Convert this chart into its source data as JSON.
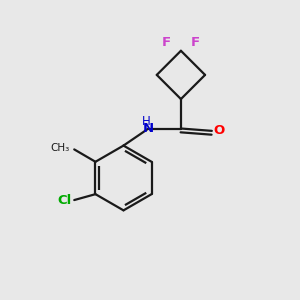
{
  "background_color": "#e8e8e8",
  "bond_color": "#1a1a1a",
  "F_color": "#cc44cc",
  "O_color": "#ff0000",
  "N_color": "#0000cc",
  "Cl_color": "#00aa00",
  "line_width": 1.6,
  "font_size": 9.5,
  "figsize": [
    3.0,
    3.0
  ],
  "dpi": 100,
  "xlim": [
    0,
    10
  ],
  "ylim": [
    0,
    10
  ]
}
